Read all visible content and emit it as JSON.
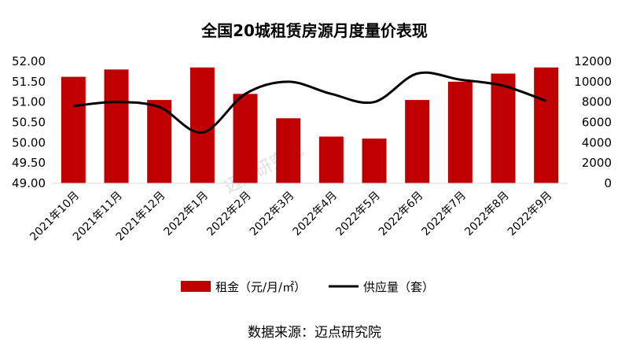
{
  "chart_data": {
    "type": "bar",
    "title": "全国20城租赁房源月度量价表现",
    "categories": [
      "2021年10月",
      "2021年11月",
      "2021年12月",
      "2022年1月",
      "2022年2月",
      "2022年3月",
      "2022年4月",
      "2022年5月",
      "2022年6月",
      "2022年7月",
      "2022年8月",
      "2022年9月"
    ],
    "series": [
      {
        "name": "租金（元/月/㎡）",
        "type": "bar",
        "axis": "left",
        "color": "#c00000",
        "values": [
          51.62,
          51.8,
          51.05,
          51.85,
          51.2,
          50.6,
          50.15,
          50.1,
          51.05,
          51.5,
          51.7,
          51.85
        ]
      },
      {
        "name": "供应量（套）",
        "type": "line",
        "axis": "right",
        "color": "#000000",
        "values": [
          7600,
          8000,
          7500,
          5000,
          8800,
          10000,
          8800,
          8000,
          10800,
          10200,
          9600,
          8100
        ]
      }
    ],
    "ylim_left": [
      49.0,
      52.0
    ],
    "yticks_left": [
      "52.00",
      "51.50",
      "51.00",
      "50.50",
      "50.00",
      "49.50",
      "49.00"
    ],
    "ylim_right": [
      0,
      12000
    ],
    "yticks_right": [
      "12000",
      "10000",
      "8000",
      "6000",
      "4000",
      "2000",
      "0"
    ],
    "legend_position": "bottom",
    "grid": false
  },
  "source_note": "数据来源：迈点研究院",
  "watermark": {
    "text": "迈点研究院"
  }
}
